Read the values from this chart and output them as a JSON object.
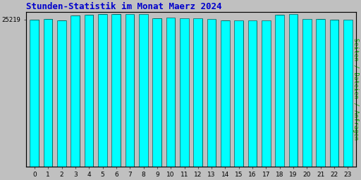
{
  "title": "Stunden-Statistik im Monat Maerz 2024",
  "ylabel": "Seiten / Dateien / Anfragen",
  "xlabel_ticks": [
    "0",
    "1",
    "2",
    "3",
    "4",
    "5",
    "6",
    "7",
    "8",
    "9",
    "10",
    "11",
    "12",
    "13",
    "14",
    "15",
    "16",
    "17",
    "18",
    "19",
    "20",
    "21",
    "22",
    "23"
  ],
  "ylim_label": "25219",
  "background_color": "#c0c0c0",
  "plot_bg_color": "#c0c0c0",
  "title_color": "#0000cc",
  "ylabel_color": "#00aa00",
  "bar_cyan": "#00ffff",
  "bar_blue": "#0000bb",
  "bar_green": "#006600",
  "bar_edgecolor": "#003333",
  "values_cyan": [
    25219,
    25300,
    25100,
    25900,
    26050,
    26150,
    26150,
    26100,
    26100,
    25450,
    25500,
    25400,
    25350,
    25250,
    25100,
    25000,
    25050,
    25050,
    26050,
    26100,
    25250,
    25300,
    25200,
    25150
  ],
  "values_blue": [
    25100,
    25180,
    24980,
    25780,
    25930,
    26030,
    26030,
    25980,
    25980,
    25330,
    25380,
    25280,
    25230,
    25130,
    24980,
    24880,
    24930,
    24930,
    25930,
    25980,
    25130,
    25180,
    25080,
    25030
  ],
  "values_green": [
    25150,
    25230,
    25030,
    25830,
    25980,
    26080,
    26080,
    26030,
    26030,
    25380,
    25430,
    25330,
    25280,
    25180,
    25030,
    24930,
    24980,
    24980,
    25980,
    26030,
    25180,
    25230,
    25130,
    25080
  ],
  "ymin": 0,
  "ymax": 26500,
  "ytick_val": 25219,
  "ytick_pos": 25219
}
